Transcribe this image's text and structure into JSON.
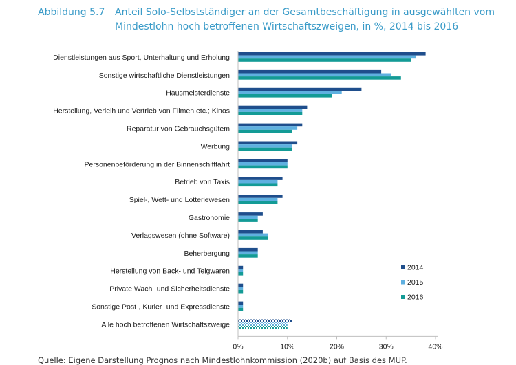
{
  "figure": {
    "number": "Abbildung 5.7",
    "title": "Anteil Solo-Selbstständiger an der Gesamtbeschäftigung in ausgewählten vom Mindestlohn hoch betroffenen Wirtschaftszweigen, in %, 2014 bis 2016",
    "source": "Quelle:   Eigene Darstellung Prognos nach Mindestlohnkommission (2020b) auf Basis des MUP."
  },
  "colors": {
    "2014": "#1f4e8c",
    "2015": "#5fb0e0",
    "2016": "#139b96",
    "axis": "#bfbfbf",
    "text": "#1a1a1a"
  },
  "chart_data": {
    "type": "bar",
    "orientation": "horizontal",
    "categories": [
      "Dienstleistungen aus Sport, Unterhaltung und Erholung",
      "Sonstige wirtschaftliche Dienstleistungen",
      "Hausmeisterdienste",
      "Herstellung, Verleih und Vertrieb von Filmen etc.; Kinos",
      "Reparatur von Gebrauchsgütem",
      "Werbung",
      "Personenbeförderung in der Binnenschifffahrt",
      "Betrieb von Taxis",
      "Spiel-, Wett- und Lotteriewesen",
      "Gastronomie",
      "Verlagswesen (ohne Software)",
      "Beherbergung",
      "Herstellung von Back- und Teigwaren",
      "Private Wach- und Sicherheitsdienste",
      "Sonstige Post-, Kurier- und Expressdienste",
      "Alle hoch betroffenen Wirtschaftszweige"
    ],
    "series": [
      {
        "name": "2014",
        "values": [
          38,
          29,
          25,
          14,
          13,
          12,
          10,
          9,
          9,
          5,
          5,
          4,
          1,
          1,
          1,
          11
        ]
      },
      {
        "name": "2015",
        "values": [
          36,
          31,
          21,
          13,
          12,
          11,
          10,
          8,
          8,
          4,
          6,
          4,
          1,
          1,
          1,
          10
        ]
      },
      {
        "name": "2016",
        "values": [
          35,
          33,
          19,
          13,
          11,
          11,
          10,
          8,
          8,
          4,
          6,
          4,
          1,
          1,
          1,
          10
        ]
      }
    ],
    "xlim": [
      0,
      40
    ],
    "xticks": [
      "0%",
      "10%",
      "20%",
      "30%",
      "40%"
    ],
    "xtick_values": [
      0,
      10,
      20,
      30,
      40
    ],
    "legend": [
      "2014",
      "2015",
      "2016"
    ],
    "legend_position": "right",
    "patterned_category": "Alle hoch betroffenen Wirtschaftszweige"
  }
}
